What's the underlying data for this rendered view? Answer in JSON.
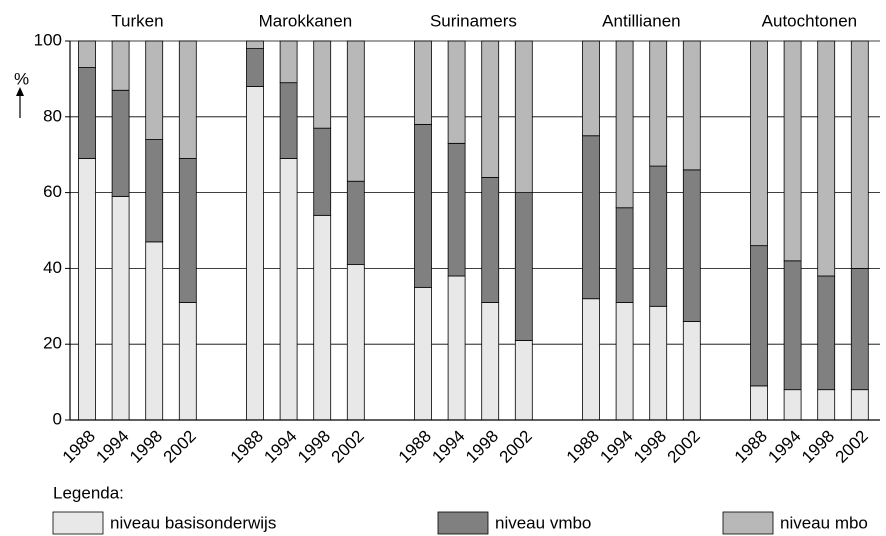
{
  "chart_data": {
    "type": "bar",
    "stacked": true,
    "ylabel": "%",
    "legend_title": "Legenda:",
    "groups": [
      "Turken",
      "Marokkanen",
      "Surinamers",
      "Antillianen",
      "Autochtonen"
    ],
    "categories": [
      "1988",
      "1994",
      "1998",
      "2002",
      "1988",
      "1994",
      "1998",
      "2002",
      "1988",
      "1994",
      "1998",
      "2002",
      "1988",
      "1994",
      "1998",
      "2002",
      "1988",
      "1994",
      "1998",
      "2002"
    ],
    "series": [
      {
        "name": "niveau basisonderwijs",
        "color": "#e8e8e8",
        "values": [
          69,
          59,
          47,
          31,
          88,
          69,
          54,
          41,
          35,
          38,
          31,
          21,
          32,
          31,
          30,
          26,
          9,
          8,
          8,
          8
        ]
      },
      {
        "name": "niveau vmbo",
        "color": "#808080",
        "values": [
          24,
          28,
          27,
          38,
          10,
          20,
          23,
          22,
          43,
          35,
          33,
          39,
          43,
          25,
          37,
          40,
          37,
          34,
          30,
          32
        ]
      },
      {
        "name": "niveau mbo",
        "color": "#b8b8b8",
        "values": [
          7,
          13,
          26,
          31,
          2,
          11,
          23,
          37,
          22,
          27,
          36,
          40,
          25,
          44,
          33,
          34,
          54,
          58,
          62,
          60
        ]
      }
    ],
    "ylim": [
      0,
      100
    ],
    "yticks": [
      0,
      20,
      40,
      60,
      80,
      100
    ],
    "grid": true
  }
}
